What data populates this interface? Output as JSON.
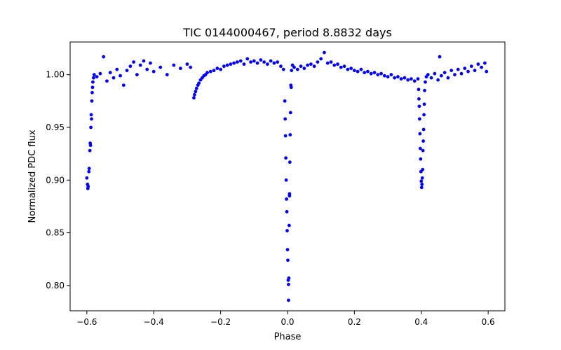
{
  "chart_data": {
    "type": "scatter",
    "title": "TIC 0144000467, period 8.8832 days",
    "xlabel": "Phase",
    "ylabel": "Normalized PDC flux",
    "xlim": [
      -0.65,
      0.65
    ],
    "ylim": [
      0.776,
      1.031
    ],
    "x_ticks": [
      -0.6,
      -0.4,
      -0.2,
      0.0,
      0.2,
      0.4,
      0.6
    ],
    "x_tick_labels": [
      "−0.6",
      "−0.4",
      "−0.2",
      "0.0",
      "0.2",
      "0.4",
      "0.6"
    ],
    "y_ticks": [
      0.8,
      0.85,
      0.9,
      0.95,
      1.0
    ],
    "y_tick_labels": [
      "0.80",
      "0.85",
      "0.90",
      "0.95",
      "1.00"
    ],
    "grid": false,
    "marker_color": "#0000ff",
    "points": [
      [
        -0.6,
        0.902
      ],
      [
        -0.598,
        0.896
      ],
      [
        -0.597,
        0.892
      ],
      [
        -0.596,
        0.894
      ],
      [
        -0.594,
        0.908
      ],
      [
        -0.593,
        0.911
      ],
      [
        -0.591,
        0.928
      ],
      [
        -0.59,
        0.935
      ],
      [
        -0.589,
        0.933
      ],
      [
        -0.588,
        0.95
      ],
      [
        -0.587,
        0.962
      ],
      [
        -0.586,
        0.958
      ],
      [
        -0.585,
        0.975
      ],
      [
        -0.584,
        0.983
      ],
      [
        -0.583,
        0.988
      ],
      [
        -0.582,
        0.993
      ],
      [
        -0.58,
        0.997
      ],
      [
        -0.578,
        1.0
      ],
      [
        -0.57,
        0.998
      ],
      [
        -0.56,
        1.001
      ],
      [
        -0.55,
        1.017
      ],
      [
        -0.54,
        0.994
      ],
      [
        -0.53,
        1.002
      ],
      [
        -0.52,
        0.997
      ],
      [
        -0.51,
        1.005
      ],
      [
        -0.5,
        0.999
      ],
      [
        -0.49,
        0.99
      ],
      [
        -0.48,
        1.004
      ],
      [
        -0.47,
        1.008
      ],
      [
        -0.46,
        1.012
      ],
      [
        -0.45,
        1.0
      ],
      [
        -0.44,
        1.009
      ],
      [
        -0.43,
        1.013
      ],
      [
        -0.42,
        1.005
      ],
      [
        -0.41,
        1.011
      ],
      [
        -0.4,
        1.003
      ],
      [
        -0.38,
        1.007
      ],
      [
        -0.36,
        1.0
      ],
      [
        -0.34,
        1.009
      ],
      [
        -0.32,
        1.006
      ],
      [
        -0.3,
        1.01
      ],
      [
        -0.29,
        1.007
      ],
      [
        -0.28,
        0.978
      ],
      [
        -0.278,
        0.981
      ],
      [
        -0.275,
        0.984
      ],
      [
        -0.272,
        0.987
      ],
      [
        -0.268,
        0.99
      ],
      [
        -0.265,
        0.992
      ],
      [
        -0.26,
        0.995
      ],
      [
        -0.255,
        0.997
      ],
      [
        -0.25,
        0.999
      ],
      [
        -0.245,
        1.0
      ],
      [
        -0.24,
        1.002
      ],
      [
        -0.23,
        1.003
      ],
      [
        -0.22,
        1.004
      ],
      [
        -0.21,
        1.006
      ],
      [
        -0.2,
        1.005
      ],
      [
        -0.19,
        1.008
      ],
      [
        -0.18,
        1.009
      ],
      [
        -0.17,
        1.01
      ],
      [
        -0.16,
        1.011
      ],
      [
        -0.15,
        1.012
      ],
      [
        -0.14,
        1.013
      ],
      [
        -0.13,
        1.01
      ],
      [
        -0.12,
        1.015
      ],
      [
        -0.11,
        1.012
      ],
      [
        -0.1,
        1.013
      ],
      [
        -0.09,
        1.011
      ],
      [
        -0.08,
        1.014
      ],
      [
        -0.07,
        1.012
      ],
      [
        -0.06,
        1.01
      ],
      [
        -0.05,
        1.013
      ],
      [
        -0.04,
        1.011
      ],
      [
        -0.03,
        1.012
      ],
      [
        -0.02,
        1.008
      ],
      [
        -0.012,
        1.005
      ],
      [
        -0.008,
        0.975
      ],
      [
        -0.007,
        0.958
      ],
      [
        -0.006,
        0.942
      ],
      [
        -0.005,
        0.921
      ],
      [
        -0.004,
        0.9
      ],
      [
        -0.003,
        0.882
      ],
      [
        -0.002,
        0.87
      ],
      [
        -0.001,
        0.852
      ],
      [
        0.0,
        0.834
      ],
      [
        0.001,
        0.824
      ],
      [
        0.002,
        0.805
      ],
      [
        0.003,
        0.801
      ],
      [
        0.003,
        0.786
      ],
      [
        0.004,
        0.807
      ],
      [
        0.005,
        0.857
      ],
      [
        0.006,
        0.887
      ],
      [
        0.006,
        0.885
      ],
      [
        0.007,
        0.917
      ],
      [
        0.008,
        0.943
      ],
      [
        0.009,
        0.964
      ],
      [
        0.01,
        0.99
      ],
      [
        0.011,
        0.988
      ],
      [
        0.012,
        1.004
      ],
      [
        0.015,
        1.009
      ],
      [
        0.02,
        1.007
      ],
      [
        0.03,
        1.005
      ],
      [
        0.04,
        1.008
      ],
      [
        0.05,
        1.006
      ],
      [
        0.06,
        1.009
      ],
      [
        0.07,
        1.01
      ],
      [
        0.08,
        1.008
      ],
      [
        0.09,
        1.012
      ],
      [
        0.1,
        1.015
      ],
      [
        0.11,
        1.021
      ],
      [
        0.12,
        1.011
      ],
      [
        0.13,
        1.012
      ],
      [
        0.14,
        1.009
      ],
      [
        0.15,
        1.01
      ],
      [
        0.16,
        1.007
      ],
      [
        0.17,
        1.008
      ],
      [
        0.18,
        1.005
      ],
      [
        0.19,
        1.006
      ],
      [
        0.2,
        1.004
      ],
      [
        0.21,
        1.003
      ],
      [
        0.22,
        1.005
      ],
      [
        0.23,
        1.002
      ],
      [
        0.24,
        1.003
      ],
      [
        0.25,
        1.001
      ],
      [
        0.26,
        1.002
      ],
      [
        0.27,
        1.0
      ],
      [
        0.28,
        1.001
      ],
      [
        0.29,
        0.999
      ],
      [
        0.3,
        0.998
      ],
      [
        0.31,
        1.0
      ],
      [
        0.32,
        0.997
      ],
      [
        0.33,
        0.998
      ],
      [
        0.34,
        0.996
      ],
      [
        0.35,
        0.997
      ],
      [
        0.36,
        0.995
      ],
      [
        0.37,
        0.996
      ],
      [
        0.38,
        0.994
      ],
      [
        0.39,
        0.996
      ],
      [
        0.392,
        0.986
      ],
      [
        0.393,
        0.977
      ],
      [
        0.394,
        0.97
      ],
      [
        0.395,
        0.958
      ],
      [
        0.396,
        0.944
      ],
      [
        0.397,
        0.93
      ],
      [
        0.398,
        0.92
      ],
      [
        0.399,
        0.908
      ],
      [
        0.4,
        0.899
      ],
      [
        0.401,
        0.893
      ],
      [
        0.402,
        0.896
      ],
      [
        0.403,
        0.902
      ],
      [
        0.404,
        0.91
      ],
      [
        0.405,
        0.928
      ],
      [
        0.406,
        0.937
      ],
      [
        0.407,
        0.948
      ],
      [
        0.408,
        0.962
      ],
      [
        0.409,
        0.972
      ],
      [
        0.41,
        0.985
      ],
      [
        0.412,
        0.993
      ],
      [
        0.415,
        0.998
      ],
      [
        0.42,
        1.0
      ],
      [
        0.43,
        0.997
      ],
      [
        0.44,
        1.001
      ],
      [
        0.45,
        0.995
      ],
      [
        0.455,
        1.017
      ],
      [
        0.46,
        0.999
      ],
      [
        0.47,
        1.002
      ],
      [
        0.48,
        0.997
      ],
      [
        0.49,
        1.004
      ],
      [
        0.5,
        1.0
      ],
      [
        0.51,
        1.005
      ],
      [
        0.52,
        1.001
      ],
      [
        0.53,
        1.006
      ],
      [
        0.54,
        1.003
      ],
      [
        0.55,
        1.008
      ],
      [
        0.56,
        1.004
      ],
      [
        0.57,
        1.01
      ],
      [
        0.58,
        1.007
      ],
      [
        0.59,
        1.011
      ],
      [
        0.595,
        1.003
      ]
    ]
  }
}
